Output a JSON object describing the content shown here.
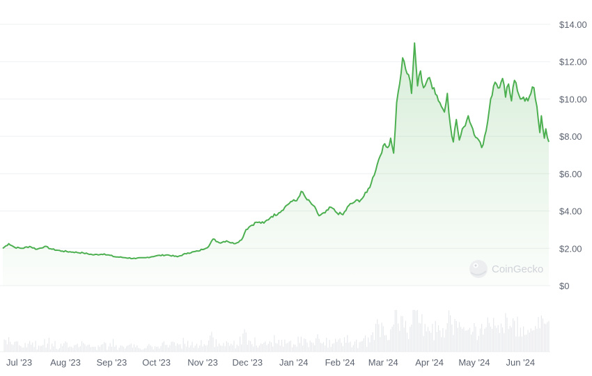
{
  "watermark": {
    "text": "CoinGecko",
    "icon": "gecko-logo-icon"
  },
  "colors": {
    "line": "#4caf50",
    "fill_top": "#4caf50",
    "grid": "#eef0f2",
    "volume": "#e6e8eb",
    "text": "#5c6370"
  },
  "chart_data": {
    "type": "area",
    "title": "",
    "xlabel": "",
    "ylabel": "",
    "x_range": [
      "2023-06-20",
      "2024-06-20"
    ],
    "ylim": [
      0,
      14
    ],
    "y_ticks": [
      {
        "value": 0,
        "label": "$0"
      },
      {
        "value": 2,
        "label": "$2.00"
      },
      {
        "value": 4,
        "label": "$4.00"
      },
      {
        "value": 6,
        "label": "$6.00"
      },
      {
        "value": 8,
        "label": "$8.00"
      },
      {
        "value": 10,
        "label": "$10.00"
      },
      {
        "value": 12,
        "label": "$12.00"
      },
      {
        "value": 14,
        "label": "$14.00"
      }
    ],
    "x_ticks": [
      {
        "date": "2023-07-01",
        "label": "Jul '23"
      },
      {
        "date": "2023-08-01",
        "label": "Aug '23"
      },
      {
        "date": "2023-09-01",
        "label": "Sep '23"
      },
      {
        "date": "2023-10-01",
        "label": "Oct '23"
      },
      {
        "date": "2023-11-01",
        "label": "Nov '23"
      },
      {
        "date": "2023-12-01",
        "label": "Dec '23"
      },
      {
        "date": "2024-01-01",
        "label": "Jan '24"
      },
      {
        "date": "2024-02-01",
        "label": "Feb '24"
      },
      {
        "date": "2024-03-01",
        "label": "Mar '24"
      },
      {
        "date": "2024-04-01",
        "label": "Apr '24"
      },
      {
        "date": "2024-05-01",
        "label": "May '24"
      },
      {
        "date": "2024-06-01",
        "label": "Jun '24"
      }
    ],
    "grid": true,
    "series": [
      {
        "points": [
          [
            "2023-06-20",
            2.0
          ],
          [
            "2023-06-24",
            2.25
          ],
          [
            "2023-06-28",
            2.05
          ],
          [
            "2023-07-03",
            2.0
          ],
          [
            "2023-07-08",
            2.1
          ],
          [
            "2023-07-13",
            1.95
          ],
          [
            "2023-07-18",
            2.1
          ],
          [
            "2023-07-23",
            1.95
          ],
          [
            "2023-07-30",
            1.85
          ],
          [
            "2023-08-06",
            1.8
          ],
          [
            "2023-08-13",
            1.75
          ],
          [
            "2023-08-20",
            1.65
          ],
          [
            "2023-08-27",
            1.7
          ],
          [
            "2023-09-03",
            1.55
          ],
          [
            "2023-09-10",
            1.5
          ],
          [
            "2023-09-17",
            1.45
          ],
          [
            "2023-09-24",
            1.5
          ],
          [
            "2023-10-01",
            1.6
          ],
          [
            "2023-10-08",
            1.65
          ],
          [
            "2023-10-15",
            1.55
          ],
          [
            "2023-10-22",
            1.75
          ],
          [
            "2023-10-29",
            1.85
          ],
          [
            "2023-11-05",
            2.1
          ],
          [
            "2023-11-08",
            2.5
          ],
          [
            "2023-11-12",
            2.3
          ],
          [
            "2023-11-17",
            2.4
          ],
          [
            "2023-11-22",
            2.25
          ],
          [
            "2023-11-27",
            2.45
          ],
          [
            "2023-11-30",
            3.0
          ],
          [
            "2023-12-03",
            3.2
          ],
          [
            "2023-12-07",
            3.4
          ],
          [
            "2023-12-12",
            3.35
          ],
          [
            "2023-12-17",
            3.7
          ],
          [
            "2023-12-22",
            3.9
          ],
          [
            "2023-12-26",
            4.2
          ],
          [
            "2023-12-30",
            4.5
          ],
          [
            "2024-01-03",
            4.55
          ],
          [
            "2024-01-06",
            5.05
          ],
          [
            "2024-01-10",
            4.6
          ],
          [
            "2024-01-14",
            4.3
          ],
          [
            "2024-01-18",
            3.75
          ],
          [
            "2024-01-22",
            3.9
          ],
          [
            "2024-01-26",
            4.2
          ],
          [
            "2024-01-30",
            3.9
          ],
          [
            "2024-02-03",
            3.8
          ],
          [
            "2024-02-07",
            4.3
          ],
          [
            "2024-02-11",
            4.5
          ],
          [
            "2024-02-15",
            4.6
          ],
          [
            "2024-02-19",
            5.0
          ],
          [
            "2024-02-22",
            5.5
          ],
          [
            "2024-02-26",
            6.5
          ],
          [
            "2024-03-01",
            7.5
          ],
          [
            "2024-03-04",
            7.4
          ],
          [
            "2024-03-06",
            7.9
          ],
          [
            "2024-03-08",
            7.1
          ],
          [
            "2024-03-10",
            9.8
          ],
          [
            "2024-03-12",
            10.8
          ],
          [
            "2024-03-14",
            12.2
          ],
          [
            "2024-03-16",
            11.6
          ],
          [
            "2024-03-18",
            11.3
          ],
          [
            "2024-03-20",
            10.3
          ],
          [
            "2024-03-22",
            13.0
          ],
          [
            "2024-03-24",
            10.7
          ],
          [
            "2024-03-26",
            11.5
          ],
          [
            "2024-03-28",
            10.6
          ],
          [
            "2024-03-31",
            11.1
          ],
          [
            "2024-04-04",
            10.6
          ],
          [
            "2024-04-08",
            9.8
          ],
          [
            "2024-04-11",
            9.3
          ],
          [
            "2024-04-13",
            10.3
          ],
          [
            "2024-04-15",
            8.6
          ],
          [
            "2024-04-17",
            7.7
          ],
          [
            "2024-04-19",
            8.9
          ],
          [
            "2024-04-21",
            7.8
          ],
          [
            "2024-04-24",
            8.5
          ],
          [
            "2024-04-27",
            9.1
          ],
          [
            "2024-04-30",
            8.4
          ],
          [
            "2024-05-03",
            7.9
          ],
          [
            "2024-05-06",
            7.4
          ],
          [
            "2024-05-09",
            8.3
          ],
          [
            "2024-05-12",
            10.0
          ],
          [
            "2024-05-15",
            10.9
          ],
          [
            "2024-05-18",
            10.6
          ],
          [
            "2024-05-20",
            11.1
          ],
          [
            "2024-05-22",
            10.1
          ],
          [
            "2024-05-24",
            10.8
          ],
          [
            "2024-05-26",
            9.9
          ],
          [
            "2024-05-28",
            11.0
          ],
          [
            "2024-05-31",
            10.2
          ],
          [
            "2024-06-03",
            10.1
          ],
          [
            "2024-06-06",
            9.9
          ],
          [
            "2024-06-08",
            10.3
          ],
          [
            "2024-06-10",
            10.6
          ],
          [
            "2024-06-12",
            9.6
          ],
          [
            "2024-06-14",
            8.2
          ],
          [
            "2024-06-15",
            9.1
          ],
          [
            "2024-06-17",
            7.9
          ],
          [
            "2024-06-18",
            8.4
          ],
          [
            "2024-06-20",
            7.7
          ]
        ]
      }
    ]
  }
}
